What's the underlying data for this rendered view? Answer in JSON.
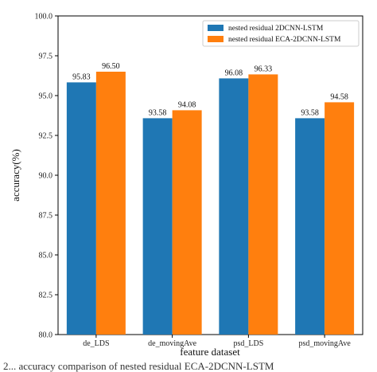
{
  "chart_data": {
    "type": "bar",
    "categories": [
      "de_LDS",
      "de_movingAve",
      "psd_LDS",
      "psd_movingAve"
    ],
    "series": [
      {
        "name": "nested residual 2DCNN-LSTM",
        "color": "#1f77b4",
        "values": [
          95.83,
          93.58,
          96.08,
          93.58
        ]
      },
      {
        "name": "nested residual ECA-2DCNN-LSTM",
        "color": "#ff7f0e",
        "values": [
          96.5,
          94.08,
          96.33,
          94.58
        ]
      }
    ],
    "data_labels": [
      [
        "95.83",
        "93.58",
        "96.08",
        "93.58"
      ],
      [
        "96.50",
        "94.08",
        "96.33",
        "94.58"
      ]
    ],
    "yticks": [
      "80.0",
      "82.5",
      "85.0",
      "87.5",
      "90.0",
      "92.5",
      "95.0",
      "97.5",
      "100.0"
    ],
    "ylim": [
      80,
      100
    ],
    "title": "",
    "xlabel": "feature dataset",
    "ylabel": "accuracy(%)",
    "legend_position": "top-right",
    "grid": false
  },
  "caption": "2... accuracy comparison of nested residual ECA-2DCNN-LSTM"
}
